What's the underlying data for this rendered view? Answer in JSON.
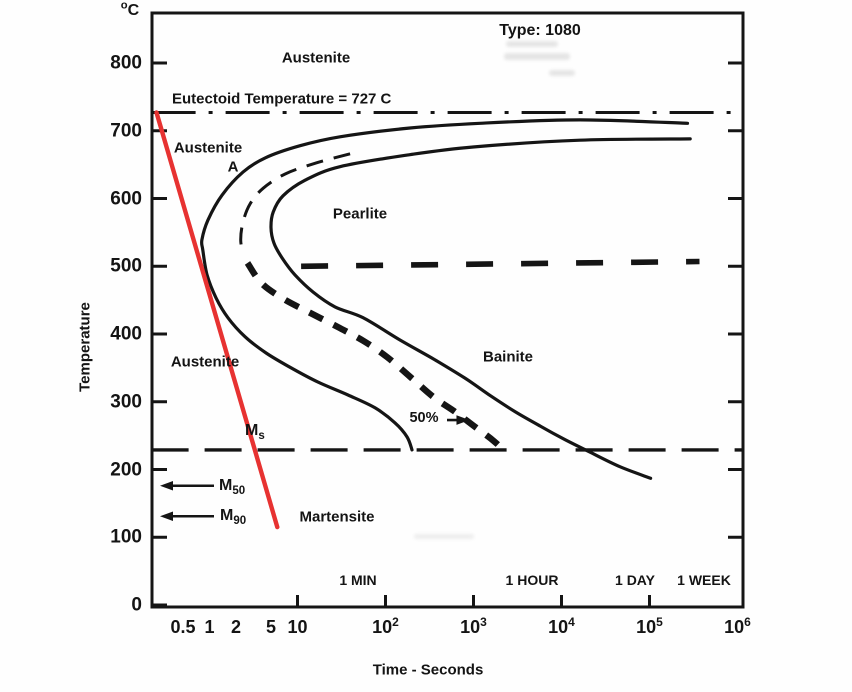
{
  "figure": {
    "title": "Type: 1080",
    "eutectoid_label": "Eutectoid Temperature = 727 C",
    "y_axis": {
      "unit_sup": "o",
      "unit_base": "C",
      "label": "Temperature",
      "ticks": [
        800,
        700,
        600,
        500,
        400,
        300,
        200,
        100,
        0
      ]
    },
    "x_axis": {
      "label": "Time - Seconds",
      "ticks": [
        {
          "base": "0.5",
          "t": 0.5
        },
        {
          "base": "1",
          "t": 1
        },
        {
          "base": "2",
          "t": 2
        },
        {
          "base": "5",
          "t": 5
        },
        {
          "base": "10",
          "t": 10
        },
        {
          "base": "10",
          "exp": "2",
          "t": 100
        },
        {
          "base": "10",
          "exp": "3",
          "t": 1000
        },
        {
          "base": "10",
          "exp": "4",
          "t": 10000
        },
        {
          "base": "10",
          "exp": "5",
          "t": 100000
        },
        {
          "base": "10",
          "exp": "6",
          "t": 1000000
        }
      ],
      "tick_marks_t": [
        10,
        100,
        1000,
        10000,
        100000
      ]
    },
    "time_markers": [
      {
        "text": "1 MIN"
      },
      {
        "text": "1 HOUR"
      },
      {
        "text": "1 DAY"
      },
      {
        "text": "1 WEEK"
      }
    ],
    "region_labels": {
      "austenite_top": "Austenite",
      "austenite_mid": "Austenite",
      "a_short": "A",
      "pearlite": "Pearlite",
      "bainite": "Bainite",
      "austenite_lower": "Austenite",
      "martensite": "Martensite",
      "fifty_percent": "50%"
    },
    "m_labels": {
      "ms": {
        "base": "M",
        "sub": "s"
      },
      "m50": {
        "base": "M",
        "sub": "50"
      },
      "m90": {
        "base": "M",
        "sub": "90"
      }
    },
    "colors": {
      "ink": "#151515",
      "cooling_line": "#e73231",
      "background": "#ffffff"
    }
  },
  "chart_data": {
    "type": "line",
    "title": "Type: 1080 (TTT diagram)",
    "xlabel": "Time - Seconds",
    "ylabel": "Temperature (C)",
    "x_scale": "log",
    "x_range_s": [
      0.22,
      1150000
    ],
    "y_range_C": [
      0,
      875
    ],
    "grid": false,
    "eutectoid_temperature_C": 727,
    "ms_temperature_C": 229,
    "m50_temperature_C": 176,
    "m90_temperature_C": 131,
    "series": [
      {
        "name": "transformation-start",
        "style": "solid",
        "points": [
          [
            270000,
            711
          ],
          [
            16200,
            716
          ],
          [
            1186,
            711
          ],
          [
            190,
            704
          ],
          [
            30.4,
            691
          ],
          [
            10.7,
            678
          ],
          [
            4.3,
            660
          ],
          [
            2.4,
            639
          ],
          [
            1.39,
            605
          ],
          [
            0.96,
            568
          ],
          [
            0.82,
            539
          ],
          [
            0.84,
            524
          ],
          [
            0.94,
            487
          ],
          [
            1.19,
            453
          ],
          [
            1.62,
            424
          ],
          [
            2.53,
            396
          ],
          [
            4.4,
            372
          ],
          [
            8.2,
            351
          ],
          [
            17.1,
            329
          ],
          [
            37.5,
            310
          ],
          [
            76,
            291
          ],
          [
            128,
            269
          ],
          [
            176,
            248
          ],
          [
            200,
            229
          ]
        ]
      },
      {
        "name": "transformation-finish",
        "style": "solid",
        "points": [
          [
            290000,
            688
          ],
          [
            16200,
            686
          ],
          [
            989,
            676
          ],
          [
            175,
            664
          ],
          [
            30.4,
            647
          ],
          [
            12.2,
            627
          ],
          [
            6.85,
            604
          ],
          [
            5.3,
            580
          ],
          [
            5.0,
            557
          ],
          [
            5.4,
            534
          ],
          [
            6.7,
            512
          ],
          [
            9.4,
            487
          ],
          [
            15,
            462
          ],
          [
            26.7,
            440
          ],
          [
            55.6,
            424
          ],
          [
            147,
            391
          ],
          [
            363,
            362
          ],
          [
            797,
            335
          ],
          [
            1556,
            309
          ],
          [
            2997,
            285
          ],
          [
            5735,
            264
          ],
          [
            11000,
            244
          ],
          [
            22300,
            224
          ],
          [
            46500,
            204
          ],
          [
            103000,
            187
          ]
        ]
      },
      {
        "name": "fifty-percent-upper",
        "style": "dashed-thin",
        "points": [
          [
            39.6,
            666
          ],
          [
            15.8,
            652
          ],
          [
            7.2,
            636
          ],
          [
            4.06,
            615
          ],
          [
            2.89,
            592
          ],
          [
            2.4,
            565
          ],
          [
            2.26,
            539
          ],
          [
            2.4,
            518
          ]
        ]
      },
      {
        "name": "fifty-percent-lower",
        "style": "dashed-bold",
        "points": [
          [
            2.7,
            505
          ],
          [
            3.9,
            475
          ],
          [
            6.9,
            452
          ],
          [
            14,
            431
          ],
          [
            29,
            410
          ],
          [
            56,
            390
          ],
          [
            104,
            366
          ],
          [
            190,
            337
          ],
          [
            350,
            307
          ],
          [
            620,
            285
          ],
          [
            1040,
            263
          ],
          [
            1630,
            244
          ],
          [
            2030,
            233
          ]
        ]
      },
      {
        "name": "bainite-500C-boundary",
        "style": "dashed-heavy",
        "points": [
          [
            11,
            500
          ],
          [
            370000,
            507
          ]
        ]
      },
      {
        "name": "eutectoid-line",
        "style": "dash-dot",
        "points": [
          [
            0.22,
            727
          ],
          [
            1150000,
            727
          ]
        ]
      },
      {
        "name": "ms-line",
        "style": "long-dash",
        "points": [
          [
            0.22,
            229
          ],
          [
            1150000,
            229
          ]
        ]
      },
      {
        "name": "cooling-curve",
        "style": "solid-red",
        "color": "#e73231",
        "points": [
          [
            0.25,
            727
          ],
          [
            5.9,
            115
          ]
        ]
      }
    ],
    "annotations": {
      "fifty_percent_arrow": {
        "T": 273,
        "t_tail": 500,
        "t_head": 900
      }
    }
  }
}
